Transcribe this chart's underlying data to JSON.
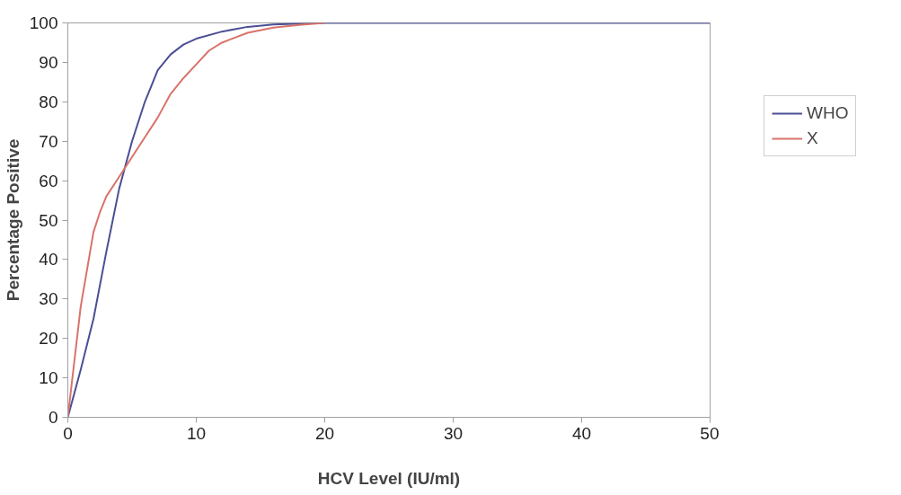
{
  "chart_data": {
    "type": "line",
    "xlabel": "HCV Level (IU/ml)",
    "ylabel": "Percentage Positive",
    "xlim": [
      0,
      50
    ],
    "xticks": [
      0,
      10,
      20,
      30,
      40,
      50
    ],
    "ylim": [
      0,
      100
    ],
    "yticks": [
      0,
      10,
      20,
      30,
      40,
      50,
      60,
      70,
      80,
      90,
      100
    ],
    "grid": false,
    "legend": "right",
    "marker": "none",
    "line_style": "solid",
    "series": [
      {
        "name": "WHO",
        "color": "#4b4f94",
        "x": [
          0,
          1,
          2,
          3,
          4,
          5,
          6,
          7,
          8,
          9,
          10,
          12,
          14,
          16,
          20,
          25,
          50
        ],
        "values": [
          0,
          12,
          25,
          42,
          58,
          70,
          80,
          88,
          92,
          94.5,
          96,
          97.8,
          99,
          99.6,
          100,
          100,
          100
        ]
      },
      {
        "name": "X",
        "color": "#d9736a",
        "x": [
          0,
          1,
          2,
          2.5,
          3,
          4,
          5,
          6,
          7,
          8,
          9,
          10,
          11,
          12,
          14,
          16,
          18,
          20
        ],
        "values": [
          0,
          28,
          47,
          52,
          56,
          61,
          66,
          71,
          76,
          82,
          86,
          89.5,
          93,
          95,
          97.5,
          98.8,
          99.5,
          100
        ]
      }
    ]
  }
}
